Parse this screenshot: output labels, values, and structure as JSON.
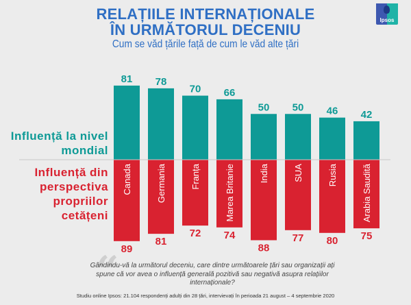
{
  "header": {
    "title_line1": "RELAȚIILE INTERNAȚIONALE",
    "title_line2": "ÎN URMĂTORUL DECENIU",
    "subtitle": "Cum se văd țările față de cum le văd alte țări",
    "logo_text": "Ipsos"
  },
  "colors": {
    "title": "#2f6fc4",
    "positive": "#0e9a96",
    "negative": "#d92230",
    "background": "#ececec"
  },
  "side_labels": {
    "positive": "Influență la nivel mondial",
    "negative": "Influență din perspectiva propriilor cetățeni"
  },
  "chart_data": {
    "type": "bar",
    "title": "RELAȚIILE INTERNAȚIONALE ÎN URMĂTORUL DECENIU",
    "subtitle": "Cum se văd țările față de cum le văd alte țări",
    "categories": [
      "Canada",
      "Germania",
      "Franța",
      "Marea Britanie",
      "India",
      "SUA",
      "Rusia",
      "Arabia Saudită"
    ],
    "series": [
      {
        "name": "Influență la nivel mondial",
        "direction": "up",
        "color": "#0e9a96",
        "values": [
          81,
          78,
          70,
          66,
          50,
          50,
          46,
          42
        ]
      },
      {
        "name": "Influență din perspectiva propriilor cetățeni",
        "direction": "down",
        "color": "#d92230",
        "values": [
          89,
          81,
          72,
          74,
          88,
          77,
          80,
          75
        ]
      }
    ],
    "xlabel": "",
    "ylabel": "",
    "ylim": [
      0,
      100
    ],
    "grid": false,
    "legend": "left"
  },
  "footer": {
    "question": "Gândindu-vă la următorul deceniu, care dintre următoarele țări sau organizații ați spune că vor avea o influență generală pozitivă sau negativă asupra relațiilor internaționale?",
    "source": "Studiu online Ipsos: 21.104 respondenți adulți din 28 țări, intervievați în perioada 21 august – 4 septembrie 2020"
  }
}
